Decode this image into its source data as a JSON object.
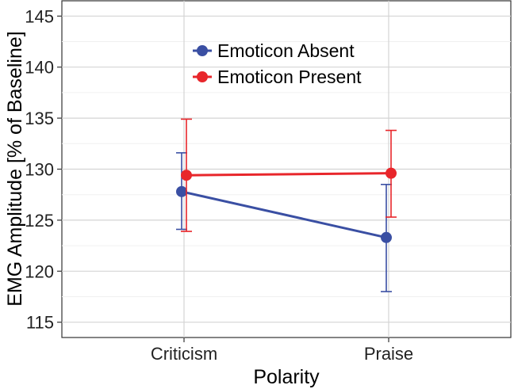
{
  "chart_data": {
    "type": "line",
    "title": "",
    "xlabel": "Polarity",
    "ylabel": "EMG Amplitude [% of Baseline]",
    "categories": [
      "Criticism",
      "Praise"
    ],
    "ylim": [
      113.5,
      146.5
    ],
    "yticks": [
      115,
      120,
      125,
      130,
      135,
      140,
      145
    ],
    "ytick_labels": [
      "115",
      "120",
      "125",
      "130",
      "135",
      "140",
      "145"
    ],
    "grid": true,
    "legend_position": "top-center",
    "series": [
      {
        "name": "Emoticon Absent",
        "color": "#3A4FA3",
        "values": [
          127.8,
          123.3
        ],
        "err_low": [
          124.1,
          118.0
        ],
        "err_high": [
          131.6,
          128.5
        ]
      },
      {
        "name": "Emoticon Present",
        "color": "#E8262B",
        "values": [
          129.4,
          129.6
        ],
        "err_low": [
          123.9,
          125.3
        ],
        "err_high": [
          134.9,
          133.8
        ]
      }
    ]
  }
}
